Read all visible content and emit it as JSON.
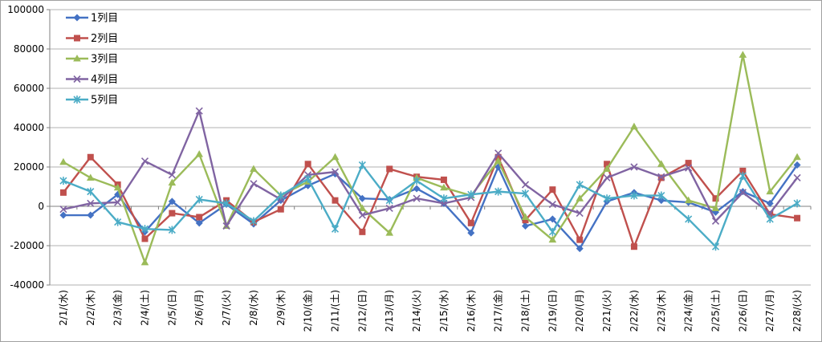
{
  "chart_data": {
    "type": "line",
    "title": "",
    "xlabel": "",
    "ylabel": "",
    "ylim": [
      -40000,
      100000
    ],
    "yticks": [
      -40000,
      -20000,
      0,
      20000,
      40000,
      60000,
      80000,
      100000
    ],
    "grid": "horizontal",
    "legend": "top-left",
    "categories": [
      "2/1/(水)",
      "2/2/(木)",
      "2/3/(金)",
      "2/4/(土)",
      "2/5/(日)",
      "2/6/(月)",
      "2/7/(火)",
      "2/8/(水)",
      "2/9/(木)",
      "2/10/(金)",
      "2/11/(土)",
      "2/12/(日)",
      "2/13/(月)",
      "2/14/(火)",
      "2/15/(水)",
      "2/16/(木)",
      "2/17/(金)",
      "2/18/(土)",
      "2/19/(日)",
      "2/20/(月)",
      "2/21/(火)",
      "2/22/(水)",
      "2/23/(木)",
      "2/24/(金)",
      "2/25/(土)",
      "2/26/(日)",
      "2/27/(月)",
      "2/28/(火)"
    ],
    "series": [
      {
        "name": "1列目",
        "color": "#4472C4",
        "marker": "diamond",
        "values": [
          -4500,
          -4500,
          6000,
          -13000,
          2500,
          -8500,
          1000,
          -9000,
          3000,
          10500,
          16500,
          4000,
          3500,
          9000,
          1500,
          -13500,
          20000,
          -10000,
          -6500,
          -21500,
          2500,
          7000,
          3000,
          2000,
          -3000,
          7500,
          1500,
          21000
        ]
      },
      {
        "name": "2列目",
        "color": "#C0504D",
        "marker": "square",
        "values": [
          7000,
          25000,
          11000,
          -16500,
          -3500,
          -5500,
          3000,
          -8000,
          -1500,
          21500,
          3000,
          -13000,
          19000,
          15000,
          13500,
          -8500,
          25000,
          -7000,
          8500,
          -17000,
          21500,
          -20500,
          14500,
          22000,
          4000,
          18000,
          -4000,
          -6000
        ]
      },
      {
        "name": "3列目",
        "color": "#9BBB59",
        "marker": "triangle",
        "values": [
          22500,
          14500,
          9500,
          -28500,
          12000,
          26500,
          -10000,
          19000,
          5500,
          12500,
          25000,
          -1000,
          -13500,
          14500,
          9500,
          5500,
          23000,
          -5500,
          -17000,
          4000,
          19000,
          40500,
          21500,
          3000,
          -1000,
          77000,
          7500,
          25000
        ]
      },
      {
        "name": "4列目",
        "color": "#8064A2",
        "marker": "x",
        "values": [
          -1500,
          1500,
          2000,
          23000,
          16000,
          48500,
          -10000,
          11500,
          3500,
          16000,
          17500,
          -4500,
          -1000,
          4000,
          1500,
          4500,
          27000,
          11000,
          1000,
          -3500,
          14500,
          20000,
          15000,
          19500,
          -7500,
          7000,
          -3500,
          14500
        ]
      },
      {
        "name": "5列目",
        "color": "#4BACC6",
        "marker": "star",
        "values": [
          13000,
          7500,
          -8000,
          -11500,
          -12000,
          3500,
          1500,
          -7500,
          5500,
          14000,
          -11500,
          21000,
          3000,
          13000,
          4000,
          6000,
          7500,
          6500,
          -13000,
          11000,
          4000,
          5500,
          5500,
          -6500,
          -20500,
          15500,
          -6500,
          1500
        ]
      }
    ]
  }
}
